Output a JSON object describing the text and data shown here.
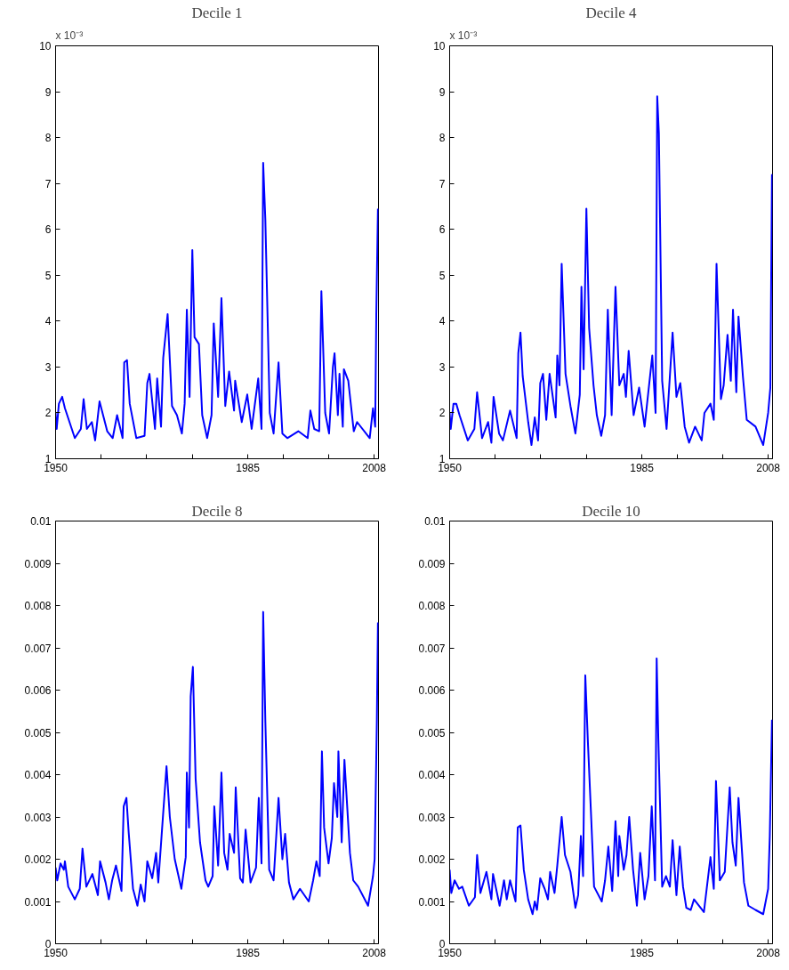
{
  "chart_data": [
    {
      "type": "line",
      "title": "Decile 1",
      "annotations": [
        "x 10⁻³"
      ],
      "xlim": [
        1950,
        2008.8
      ],
      "xticks": [
        1950,
        {
          "value": 1958.3,
          "label": null
        },
        {
          "value": 1966.6,
          "label": null
        },
        {
          "value": 1974.9,
          "label": null
        },
        1985,
        {
          "value": 1991.4,
          "label": null
        },
        {
          "value": 1999.7,
          "label": null
        },
        2008
      ],
      "ylim": [
        1,
        10
      ],
      "yticks": [
        1,
        2,
        3,
        4,
        5,
        6,
        7,
        8,
        9,
        10
      ],
      "grid": false,
      "series": [
        {
          "color": "#0000ff",
          "x": [
            1950.0,
            1950.2,
            1950.6,
            1951.2,
            1951.7,
            1953.5,
            1954.6,
            1955.1,
            1955.7,
            1956.6,
            1957.2,
            1958.0,
            1959.4,
            1960.4,
            1961.2,
            1962.2,
            1962.5,
            1963.0,
            1963.5,
            1964.7,
            1966.2,
            1966.7,
            1967.1,
            1968.1,
            1968.5,
            1969.2,
            1969.6,
            1970.4,
            1971.2,
            1972.1,
            1973.0,
            1973.5,
            1973.9,
            1974.4,
            1974.9,
            1975.3,
            1976.1,
            1976.7,
            1977.6,
            1978.4,
            1978.8,
            1979.6,
            1980.2,
            1980.9,
            1981.6,
            1982.5,
            1982.7,
            1983.9,
            1984.9,
            1985.7,
            1986.9,
            1987.5,
            1987.8,
            1988.2,
            1989.0,
            1989.7,
            1990.6,
            1991.3,
            1992.2,
            1994.2,
            1995.9,
            1996.4,
            1997.1,
            1998.0,
            1998.4,
            1999.1,
            1999.8,
            2000.5,
            2000.8,
            2001.4,
            2001.7,
            2002.3,
            2002.5,
            2003.3,
            2004.3,
            2004.9,
            2007.2,
            2007.8,
            2008.2,
            2008.4,
            2008.7
          ],
          "values": [
            2.0,
            1.65,
            2.2,
            2.35,
            2.1,
            1.45,
            1.65,
            2.3,
            1.65,
            1.8,
            1.4,
            2.25,
            1.6,
            1.45,
            1.95,
            1.45,
            3.1,
            3.15,
            2.2,
            1.45,
            1.5,
            2.65,
            2.85,
            1.65,
            2.75,
            1.7,
            3.2,
            4.15,
            2.15,
            1.95,
            1.55,
            2.2,
            4.25,
            2.35,
            5.55,
            3.65,
            3.5,
            1.95,
            1.45,
            1.95,
            3.95,
            2.35,
            4.5,
            2.15,
            2.9,
            2.05,
            2.7,
            1.8,
            2.4,
            1.65,
            2.75,
            1.65,
            7.45,
            6.2,
            2.0,
            1.55,
            3.1,
            1.55,
            1.45,
            1.6,
            1.45,
            2.05,
            1.65,
            1.6,
            4.65,
            2.0,
            1.55,
            3.0,
            3.3,
            1.95,
            2.85,
            1.7,
            2.95,
            2.7,
            1.6,
            1.8,
            1.45,
            2.1,
            1.7,
            4.15,
            6.45
          ]
        }
      ]
    },
    {
      "type": "line",
      "title": "Decile 4",
      "annotations": [
        "x 10⁻³"
      ],
      "xlim": [
        1950,
        2008.8
      ],
      "xticks": [
        1950,
        {
          "value": 1958.3,
          "label": null
        },
        {
          "value": 1966.6,
          "label": null
        },
        {
          "value": 1974.9,
          "label": null
        },
        1985,
        {
          "value": 1991.4,
          "label": null
        },
        {
          "value": 1999.7,
          "label": null
        },
        2008
      ],
      "ylim": [
        1,
        10
      ],
      "yticks": [
        1,
        2,
        3,
        4,
        5,
        6,
        7,
        8,
        9,
        10
      ],
      "grid": false,
      "series": [
        {
          "color": "#0000ff",
          "x": [
            1950.0,
            1950.2,
            1950.7,
            1951.2,
            1951.8,
            1953.3,
            1954.5,
            1955.0,
            1955.9,
            1957.0,
            1957.6,
            1958.0,
            1959.0,
            1959.7,
            1961.0,
            1962.2,
            1962.5,
            1962.9,
            1963.3,
            1964.3,
            1964.9,
            1965.5,
            1966.1,
            1966.5,
            1967.0,
            1967.6,
            1968.2,
            1969.3,
            1969.6,
            1970.0,
            1970.4,
            1971.1,
            1972.0,
            1972.9,
            1973.7,
            1974.0,
            1974.4,
            1974.9,
            1975.4,
            1976.2,
            1976.8,
            1977.6,
            1978.3,
            1978.8,
            1979.5,
            1980.2,
            1980.9,
            1981.7,
            1982.1,
            1982.6,
            1983.5,
            1984.5,
            1985.5,
            1986.9,
            1987.5,
            1987.8,
            1988.1,
            1988.7,
            1989.5,
            1990.6,
            1991.3,
            1992.0,
            1992.8,
            1993.6,
            1994.7,
            1995.9,
            1996.4,
            1997.5,
            1998.1,
            1998.6,
            1999.4,
            1999.9,
            2000.6,
            2001.2,
            2001.6,
            2002.2,
            2002.6,
            2003.4,
            2004.1,
            2005.7,
            2007.1,
            2008.0,
            2008.4,
            2008.7
          ],
          "values": [
            2.0,
            1.65,
            2.2,
            2.2,
            1.95,
            1.4,
            1.65,
            2.45,
            1.45,
            1.8,
            1.35,
            2.35,
            1.55,
            1.4,
            2.05,
            1.45,
            3.3,
            3.75,
            2.8,
            1.8,
            1.3,
            1.9,
            1.4,
            2.65,
            2.85,
            1.85,
            2.85,
            1.9,
            3.25,
            2.6,
            5.25,
            2.85,
            2.15,
            1.55,
            2.4,
            4.75,
            2.95,
            6.45,
            3.85,
            2.6,
            1.95,
            1.5,
            1.95,
            4.25,
            1.95,
            4.75,
            2.6,
            2.85,
            2.35,
            3.35,
            1.95,
            2.55,
            1.7,
            3.25,
            2.0,
            8.9,
            8.1,
            2.7,
            1.65,
            3.75,
            2.35,
            2.65,
            1.7,
            1.35,
            1.7,
            1.4,
            2.0,
            2.2,
            1.85,
            5.25,
            2.3,
            2.6,
            3.7,
            2.7,
            4.25,
            2.45,
            4.1,
            2.8,
            1.85,
            1.7,
            1.3,
            2.0,
            2.55,
            7.2
          ]
        }
      ]
    },
    {
      "type": "line",
      "title": "Decile 8",
      "xlim": [
        1950,
        2008.8
      ],
      "xticks": [
        1950,
        {
          "value": 1958.3,
          "label": null
        },
        {
          "value": 1966.6,
          "label": null
        },
        {
          "value": 1974.9,
          "label": null
        },
        1985,
        {
          "value": 1991.4,
          "label": null
        },
        {
          "value": 1999.7,
          "label": null
        },
        2008
      ],
      "ylim": [
        0,
        0.01
      ],
      "yticks": [
        0,
        0.001,
        0.002,
        0.003,
        0.004,
        0.005,
        0.006,
        0.007,
        0.008,
        0.009,
        0.01
      ],
      "grid": false,
      "series": [
        {
          "color": "#0000ff",
          "x": [
            1950.0,
            1950.3,
            1950.9,
            1951.5,
            1951.7,
            1952.3,
            1953.5,
            1954.4,
            1954.9,
            1955.6,
            1956.7,
            1957.7,
            1958.1,
            1959.1,
            1959.7,
            1960.3,
            1961.0,
            1962.0,
            1962.4,
            1962.9,
            1963.3,
            1964.1,
            1964.9,
            1965.5,
            1966.2,
            1966.7,
            1967.6,
            1968.3,
            1968.7,
            1969.3,
            1970.2,
            1970.8,
            1971.7,
            1972.9,
            1973.7,
            1973.9,
            1974.3,
            1974.6,
            1975.0,
            1975.5,
            1976.3,
            1977.3,
            1977.8,
            1978.6,
            1978.9,
            1979.6,
            1980.2,
            1980.7,
            1981.3,
            1981.7,
            1982.5,
            1982.8,
            1983.6,
            1984.1,
            1984.6,
            1985.5,
            1986.5,
            1987.0,
            1987.5,
            1987.8,
            1988.2,
            1988.9,
            1989.7,
            1990.6,
            1991.3,
            1991.8,
            1992.5,
            1993.3,
            1994.5,
            1996.1,
            1996.9,
            1997.5,
            1998.1,
            1998.5,
            1998.9,
            1999.7,
            2000.3,
            2000.7,
            2001.3,
            2001.5,
            2002.1,
            2002.6,
            2003.6,
            2004.2,
            2005.1,
            2006.5,
            2006.9,
            2007.8,
            2008.1,
            2008.5,
            2008.7
          ],
          "values": [
            0.0018,
            0.0015,
            0.0019,
            0.00175,
            0.00195,
            0.00135,
            0.00105,
            0.0013,
            0.00225,
            0.00135,
            0.00165,
            0.00115,
            0.00195,
            0.00145,
            0.00105,
            0.0015,
            0.00185,
            0.00125,
            0.00325,
            0.00345,
            0.00265,
            0.0013,
            0.0009,
            0.0014,
            0.001,
            0.00195,
            0.00155,
            0.00215,
            0.00145,
            0.00255,
            0.0042,
            0.003,
            0.002,
            0.0013,
            0.00205,
            0.00405,
            0.00275,
            0.00585,
            0.00655,
            0.0039,
            0.0024,
            0.0015,
            0.00135,
            0.0016,
            0.00325,
            0.00185,
            0.00405,
            0.00215,
            0.00175,
            0.0026,
            0.00215,
            0.0037,
            0.00155,
            0.00145,
            0.0027,
            0.00145,
            0.0018,
            0.00345,
            0.0019,
            0.00785,
            0.00525,
            0.00175,
            0.0015,
            0.00345,
            0.002,
            0.0026,
            0.00145,
            0.00105,
            0.0013,
            0.001,
            0.0015,
            0.00195,
            0.0016,
            0.00455,
            0.00275,
            0.0019,
            0.0025,
            0.0038,
            0.003,
            0.00455,
            0.0024,
            0.00435,
            0.00215,
            0.0015,
            0.00135,
            0.001,
            0.0009,
            0.0016,
            0.002,
            0.00525,
            0.0076
          ]
        }
      ]
    },
    {
      "type": "line",
      "title": "Decile 10",
      "xlim": [
        1950,
        2008.8
      ],
      "xticks": [
        1950,
        {
          "value": 1958.3,
          "label": null
        },
        {
          "value": 1966.6,
          "label": null
        },
        {
          "value": 1974.9,
          "label": null
        },
        1985,
        {
          "value": 1991.4,
          "label": null
        },
        {
          "value": 1999.7,
          "label": null
        },
        2008
      ],
      "ylim": [
        0,
        0.01
      ],
      "yticks": [
        0,
        0.001,
        0.002,
        0.003,
        0.004,
        0.005,
        0.006,
        0.007,
        0.008,
        0.009,
        0.01
      ],
      "grid": false,
      "series": [
        {
          "color": "#0000ff",
          "x": [
            1950.0,
            1950.3,
            1950.9,
            1951.7,
            1952.3,
            1953.5,
            1954.6,
            1955.0,
            1955.6,
            1956.7,
            1957.6,
            1957.9,
            1959.1,
            1959.9,
            1960.4,
            1961.0,
            1962.0,
            1962.4,
            1962.9,
            1963.5,
            1964.3,
            1965.1,
            1965.5,
            1965.9,
            1966.5,
            1967.3,
            1967.9,
            1968.3,
            1969.1,
            1969.6,
            1970.4,
            1971.0,
            1972.0,
            1972.9,
            1973.4,
            1973.9,
            1974.3,
            1974.7,
            1975.2,
            1975.8,
            1976.3,
            1977.7,
            1978.3,
            1978.9,
            1979.6,
            1980.2,
            1980.7,
            1980.9,
            1981.7,
            1982.2,
            1982.7,
            1983.4,
            1984.1,
            1984.7,
            1985.5,
            1986.2,
            1986.8,
            1987.4,
            1987.7,
            1988.0,
            1988.7,
            1989.4,
            1990.1,
            1990.6,
            1991.3,
            1991.9,
            1992.5,
            1993.1,
            1993.9,
            1994.5,
            1996.3,
            1997.5,
            1998.1,
            1998.5,
            1999.2,
            2000.1,
            2001.0,
            2001.5,
            2002.1,
            2002.6,
            2003.6,
            2004.4,
            2005.7,
            2007.1,
            2008.0,
            2008.3,
            2008.7
          ],
          "values": [
            0.00175,
            0.0012,
            0.0015,
            0.0013,
            0.00135,
            0.0009,
            0.0011,
            0.0021,
            0.0012,
            0.0017,
            0.00105,
            0.00165,
            0.0009,
            0.0015,
            0.00105,
            0.0015,
            0.001,
            0.00275,
            0.0028,
            0.00175,
            0.00105,
            0.0007,
            0.001,
            0.0008,
            0.00155,
            0.0013,
            0.00105,
            0.0017,
            0.0012,
            0.00185,
            0.003,
            0.0021,
            0.0017,
            0.00085,
            0.00115,
            0.00255,
            0.0016,
            0.00635,
            0.0047,
            0.0029,
            0.00135,
            0.001,
            0.0015,
            0.0023,
            0.00125,
            0.0029,
            0.0016,
            0.00255,
            0.00175,
            0.0021,
            0.003,
            0.00175,
            0.0009,
            0.00215,
            0.00105,
            0.0016,
            0.00325,
            0.0015,
            0.00675,
            0.00485,
            0.00135,
            0.0016,
            0.00135,
            0.00245,
            0.00115,
            0.0023,
            0.00135,
            0.00085,
            0.0008,
            0.00105,
            0.00075,
            0.00205,
            0.0013,
            0.00385,
            0.0015,
            0.0017,
            0.0037,
            0.0024,
            0.00185,
            0.00345,
            0.00145,
            0.0009,
            0.0008,
            0.0007,
            0.0013,
            0.00255,
            0.0053
          ]
        }
      ]
    }
  ]
}
